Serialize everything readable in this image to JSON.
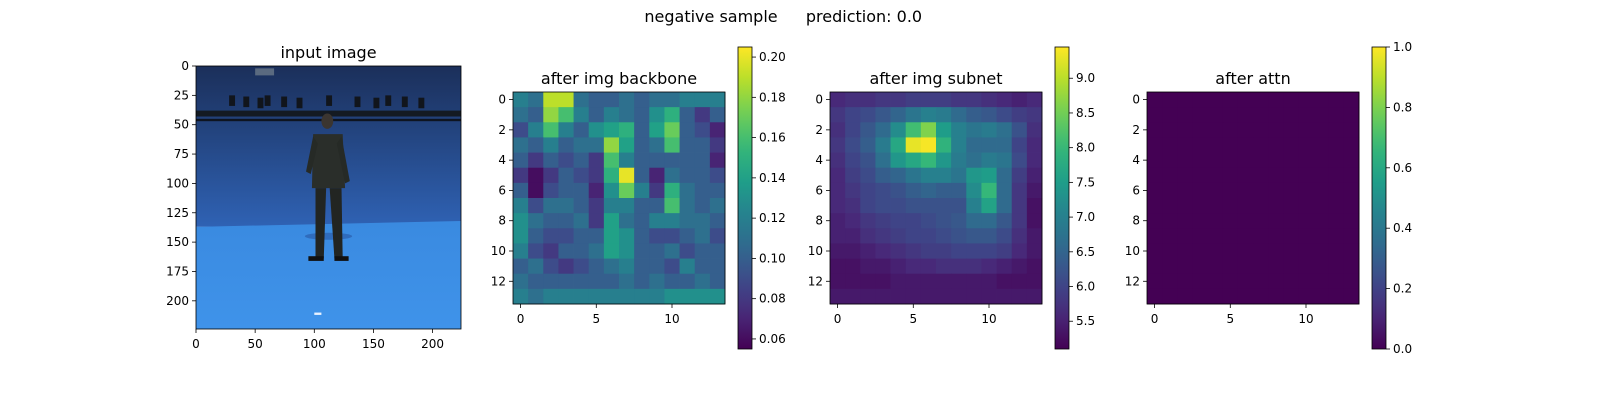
{
  "figure": {
    "title_left": "negative sample",
    "title_right": "prediction: 0.0"
  },
  "colors": {
    "viridis": [
      "#440154",
      "#482878",
      "#3e4989",
      "#31688e",
      "#26828e",
      "#1f9e89",
      "#35b779",
      "#6ece58",
      "#b5de2b",
      "#fde725"
    ],
    "photo_wall_top": "#1b2f5a",
    "photo_wall_bottom": "#2f62b4",
    "photo_floor": "#3f93ea",
    "photo_truss": "#141a22",
    "photo_person": "#2a2e2a"
  },
  "chart_data": [
    {
      "type": "image",
      "title": "input image",
      "image_semantic": "photo of a person standing in a blue motion-capture studio with camera truss",
      "xlim": [
        0,
        224
      ],
      "ylim": [
        0,
        224
      ],
      "xticks": [
        "0",
        "50",
        "100",
        "150",
        "200"
      ],
      "xtick_values": [
        0,
        50,
        100,
        150,
        200
      ],
      "yticks": [
        "0",
        "25",
        "50",
        "75",
        "100",
        "125",
        "150",
        "175",
        "200"
      ],
      "ytick_values": [
        0,
        25,
        50,
        75,
        100,
        125,
        150,
        175,
        200
      ]
    },
    {
      "type": "heatmap",
      "title": "after img backbone",
      "xticks": [
        "0",
        "5",
        "10"
      ],
      "xtick_values": [
        0,
        5,
        10
      ],
      "yticks": [
        "0",
        "2",
        "4",
        "6",
        "8",
        "10",
        "12"
      ],
      "ytick_values": [
        0,
        2,
        4,
        6,
        8,
        10,
        12
      ],
      "colorbar": {
        "vmin": 0.055,
        "vmax": 0.205,
        "ticks": [
          "0.06",
          "0.08",
          "0.10",
          "0.12",
          "0.14",
          "0.16",
          "0.18",
          "0.20"
        ],
        "tick_values": [
          0.06,
          0.08,
          0.1,
          0.12,
          0.14,
          0.16,
          0.18,
          0.2
        ]
      },
      "z": [
        [
          0.12,
          0.11,
          0.19,
          0.19,
          0.11,
          0.1,
          0.1,
          0.11,
          0.1,
          0.11,
          0.11,
          0.12,
          0.12,
          0.12
        ],
        [
          0.11,
          0.1,
          0.18,
          0.16,
          0.12,
          0.1,
          0.12,
          0.11,
          0.1,
          0.13,
          0.15,
          0.1,
          0.08,
          0.1
        ],
        [
          0.09,
          0.12,
          0.16,
          0.12,
          0.1,
          0.13,
          0.14,
          0.15,
          0.1,
          0.14,
          0.17,
          0.1,
          0.09,
          0.07
        ],
        [
          0.11,
          0.1,
          0.12,
          0.1,
          0.11,
          0.11,
          0.18,
          0.14,
          0.1,
          0.11,
          0.16,
          0.1,
          0.1,
          0.08
        ],
        [
          0.1,
          0.08,
          0.1,
          0.09,
          0.1,
          0.08,
          0.16,
          0.12,
          0.1,
          0.1,
          0.1,
          0.1,
          0.1,
          0.07
        ],
        [
          0.08,
          0.06,
          0.08,
          0.1,
          0.09,
          0.08,
          0.15,
          0.2,
          0.1,
          0.07,
          0.11,
          0.1,
          0.1,
          0.09
        ],
        [
          0.1,
          0.06,
          0.09,
          0.1,
          0.1,
          0.07,
          0.13,
          0.17,
          0.12,
          0.08,
          0.15,
          0.11,
          0.1,
          0.1
        ],
        [
          0.12,
          0.09,
          0.11,
          0.11,
          0.1,
          0.08,
          0.12,
          0.12,
          0.1,
          0.1,
          0.16,
          0.11,
          0.1,
          0.11
        ],
        [
          0.13,
          0.11,
          0.1,
          0.1,
          0.11,
          0.08,
          0.14,
          0.11,
          0.1,
          0.12,
          0.12,
          0.11,
          0.11,
          0.1
        ],
        [
          0.13,
          0.1,
          0.09,
          0.09,
          0.1,
          0.1,
          0.14,
          0.13,
          0.1,
          0.09,
          0.09,
          0.1,
          0.11,
          0.09
        ],
        [
          0.12,
          0.09,
          0.08,
          0.1,
          0.1,
          0.11,
          0.14,
          0.13,
          0.1,
          0.1,
          0.11,
          0.09,
          0.1,
          0.1
        ],
        [
          0.1,
          0.11,
          0.09,
          0.08,
          0.09,
          0.1,
          0.11,
          0.12,
          0.1,
          0.1,
          0.09,
          0.12,
          0.1,
          0.1
        ],
        [
          0.11,
          0.1,
          0.1,
          0.1,
          0.1,
          0.1,
          0.1,
          0.11,
          0.1,
          0.11,
          0.1,
          0.1,
          0.11,
          0.1
        ],
        [
          0.12,
          0.11,
          0.12,
          0.12,
          0.12,
          0.12,
          0.12,
          0.12,
          0.12,
          0.12,
          0.13,
          0.13,
          0.13,
          0.13
        ]
      ]
    },
    {
      "type": "heatmap",
      "title": "after img subnet",
      "xticks": [
        "0",
        "5",
        "10"
      ],
      "xtick_values": [
        0,
        5,
        10
      ],
      "yticks": [
        "0",
        "2",
        "4",
        "6",
        "8",
        "10",
        "12"
      ],
      "ytick_values": [
        0,
        2,
        4,
        6,
        8,
        10,
        12
      ],
      "colorbar": {
        "vmin": 5.1,
        "vmax": 9.45,
        "ticks": [
          "5.5",
          "6.0",
          "6.5",
          "7.0",
          "7.5",
          "8.0",
          "8.5",
          "9.0"
        ],
        "tick_values": [
          5.5,
          6.0,
          6.5,
          7.0,
          7.5,
          8.0,
          8.5,
          9.0
        ]
      },
      "z": [
        [
          5.6,
          5.7,
          5.7,
          5.8,
          5.8,
          5.9,
          5.9,
          5.9,
          5.8,
          5.8,
          5.7,
          5.6,
          5.5,
          5.6
        ],
        [
          5.8,
          6.0,
          6.1,
          6.3,
          6.5,
          6.8,
          7.0,
          6.9,
          6.6,
          6.4,
          6.3,
          6.1,
          5.9,
          5.8
        ],
        [
          5.7,
          6.0,
          6.3,
          6.6,
          7.2,
          8.1,
          8.6,
          7.5,
          7.0,
          6.8,
          6.9,
          6.7,
          6.2,
          5.7
        ],
        [
          5.8,
          6.1,
          6.4,
          6.9,
          7.7,
          9.3,
          9.4,
          7.9,
          7.0,
          6.6,
          6.6,
          6.6,
          6.0,
          5.6
        ],
        [
          5.7,
          6.0,
          6.2,
          6.7,
          7.4,
          7.7,
          8.0,
          7.4,
          6.9,
          6.7,
          6.9,
          6.8,
          6.1,
          5.6
        ],
        [
          5.6,
          5.9,
          6.1,
          6.4,
          6.5,
          6.8,
          7.0,
          7.0,
          6.8,
          7.4,
          7.5,
          6.6,
          5.9,
          5.5
        ],
        [
          5.6,
          5.8,
          6.0,
          6.1,
          6.2,
          6.4,
          6.5,
          6.4,
          6.4,
          7.2,
          8.0,
          6.6,
          5.8,
          5.4
        ],
        [
          5.6,
          5.7,
          6.0,
          6.1,
          6.1,
          6.2,
          6.2,
          6.2,
          6.2,
          7.0,
          7.6,
          6.6,
          5.8,
          5.3
        ],
        [
          5.5,
          5.6,
          5.8,
          5.9,
          6.0,
          6.0,
          6.1,
          6.2,
          6.3,
          6.6,
          6.6,
          6.3,
          5.8,
          5.3
        ],
        [
          5.5,
          5.5,
          5.7,
          5.8,
          5.9,
          6.0,
          6.0,
          6.1,
          6.2,
          6.3,
          6.3,
          6.1,
          5.7,
          5.4
        ],
        [
          5.4,
          5.4,
          5.5,
          5.6,
          5.7,
          5.8,
          5.9,
          5.9,
          6.0,
          6.0,
          6.0,
          5.9,
          5.6,
          5.4
        ],
        [
          5.3,
          5.3,
          5.4,
          5.4,
          5.5,
          5.6,
          5.6,
          5.7,
          5.7,
          5.7,
          5.6,
          5.5,
          5.4,
          5.3
        ],
        [
          5.3,
          5.3,
          5.3,
          5.3,
          5.4,
          5.4,
          5.4,
          5.4,
          5.4,
          5.4,
          5.4,
          5.3,
          5.3,
          5.3
        ],
        [
          5.4,
          5.4,
          5.4,
          5.4,
          5.4,
          5.4,
          5.4,
          5.4,
          5.4,
          5.4,
          5.4,
          5.4,
          5.4,
          5.4
        ]
      ]
    },
    {
      "type": "heatmap",
      "title": "after attn",
      "xticks": [
        "0",
        "5",
        "10"
      ],
      "xtick_values": [
        0,
        5,
        10
      ],
      "yticks": [
        "0",
        "2",
        "4",
        "6",
        "8",
        "10",
        "12"
      ],
      "ytick_values": [
        0,
        2,
        4,
        6,
        8,
        10,
        12
      ],
      "colorbar": {
        "vmin": 0.0,
        "vmax": 1.0,
        "ticks": [
          "0.0",
          "0.2",
          "0.4",
          "0.6",
          "0.8",
          "1.0"
        ],
        "tick_values": [
          0.0,
          0.2,
          0.4,
          0.6,
          0.8,
          1.0
        ]
      },
      "z_constant": 0.0
    }
  ]
}
